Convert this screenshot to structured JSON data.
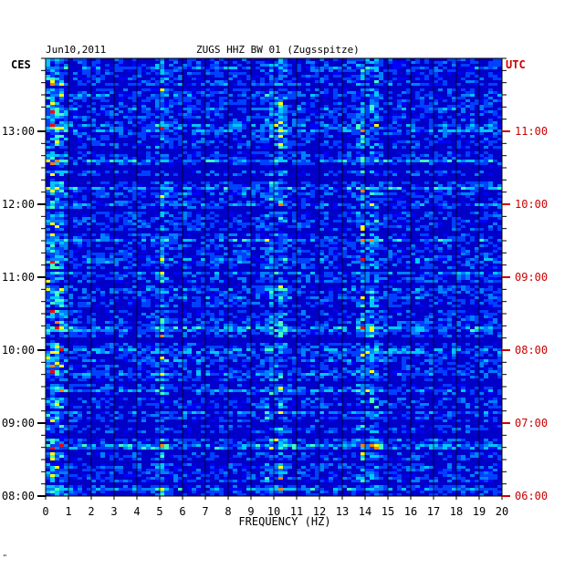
{
  "header": {
    "date": "Jun10,2011",
    "station": "ZUGS HHZ BW 01 (Zugsspitze)"
  },
  "footer": {
    "mark": "\""
  },
  "chart_data": {
    "type": "heatmap",
    "xlabel": "FREQUENCY (HZ)",
    "left_axis_label": "CES",
    "right_axis_label": "UTC",
    "xlim": [
      0,
      20
    ],
    "x_ticks": [
      "0",
      "1",
      "2",
      "3",
      "4",
      "5",
      "6",
      "7",
      "8",
      "9",
      "10",
      "11",
      "12",
      "13",
      "14",
      "15",
      "16",
      "17",
      "18",
      "19",
      "20"
    ],
    "left_ticks": [
      "13:00",
      "12:00",
      "11:00",
      "10:00",
      "09:00",
      "08:00"
    ],
    "right_ticks": [
      "11:00",
      "10:00",
      "09:00",
      "08:00",
      "07:00",
      "06:00"
    ],
    "time_range_ces": [
      "08:00",
      "13:45"
    ],
    "colors": {
      "background_band": "#0000c8",
      "low": "#0000ff",
      "mid": "#00c8ff",
      "high": "#ffff00",
      "peak": "#ff0000",
      "right_axis": "#cc0000"
    },
    "prominent_frequencies_hz": [
      0.2,
      0.6,
      5.0,
      9.7,
      10.2,
      13.8,
      14.3
    ]
  }
}
